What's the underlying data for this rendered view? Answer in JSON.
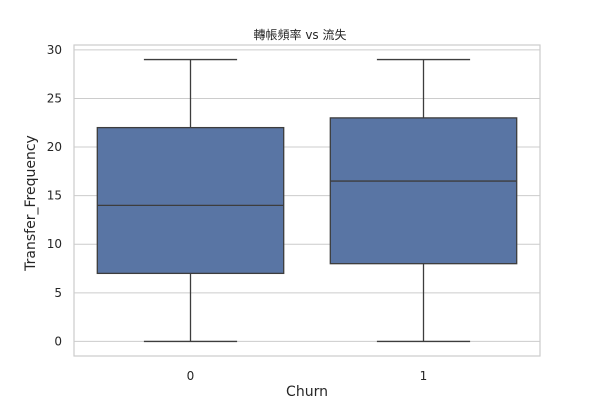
{
  "chart_data": {
    "type": "box",
    "title": "轉帳頻率 vs 流失",
    "xlabel": "Churn",
    "ylabel": "Transfer_Frequency",
    "categories": [
      "0",
      "1"
    ],
    "ylim": [
      -1.5,
      30.5
    ],
    "yticks": [
      0,
      5,
      10,
      15,
      20,
      25,
      30
    ],
    "grid": true,
    "boxes": [
      {
        "category": "0",
        "min": 0,
        "q1": 7,
        "median": 14,
        "q3": 22,
        "max": 29
      },
      {
        "category": "1",
        "min": 0,
        "q1": 8,
        "median": 16.5,
        "q3": 23,
        "max": 29
      }
    ],
    "colors": {
      "box_fill": "#5975a4",
      "line": "#3d3d3d",
      "grid": "#cccccc",
      "frame": "#cccccc"
    }
  }
}
